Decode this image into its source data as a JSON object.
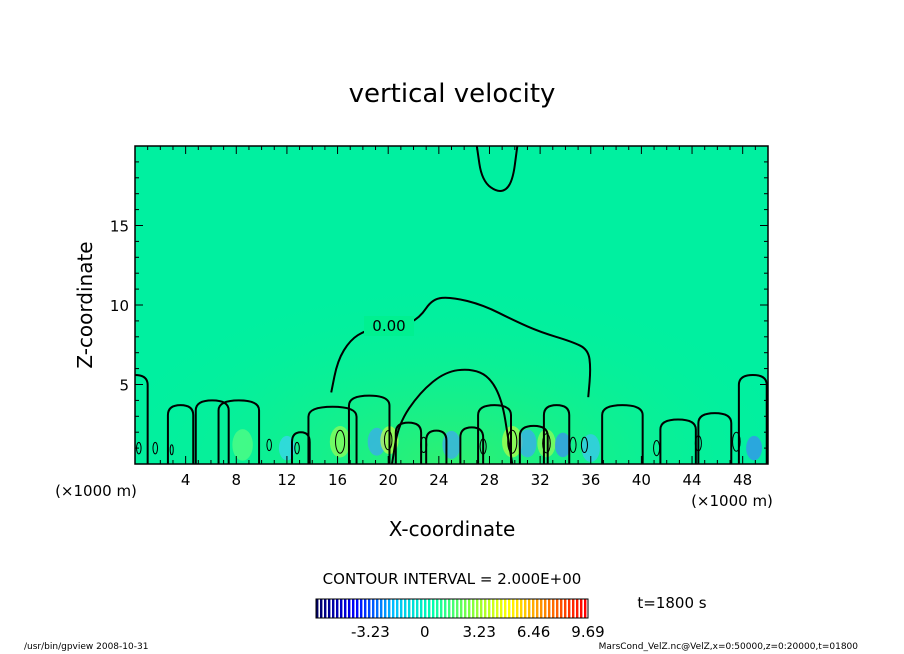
{
  "chart_data": {
    "type": "heatmap",
    "title": "vertical velocity",
    "xlabel": "X-coordinate",
    "ylabel": "Z-coordinate",
    "x_unit": "(×1000 m)",
    "xlim": [
      0,
      50
    ],
    "ylim": [
      0,
      20
    ],
    "x_ticks": [
      4,
      8,
      12,
      16,
      20,
      24,
      28,
      32,
      36,
      40,
      44,
      48
    ],
    "y_ticks": [
      5,
      10,
      15
    ],
    "contour_label": "0.00",
    "contour_interval_text": "CONTOUR INTERVAL = 2.000E+00",
    "colorbar": {
      "min": -6.46,
      "max": 9.69,
      "ticks": [
        "-3.23",
        "0",
        "3.23",
        "6.46",
        "9.69"
      ],
      "tick_values": [
        -3.23,
        0,
        3.23,
        6.46,
        9.69
      ],
      "colors": [
        "#000066",
        "#0000ff",
        "#00c0ff",
        "#00ffb0",
        "#80ff40",
        "#ffff00",
        "#ff8000",
        "#ff0000"
      ]
    },
    "time_label": "t=1800 s",
    "background_color": "#00f0a0",
    "upper_contour": [
      [
        27.0,
        20.0
      ],
      [
        27.4,
        17.8
      ],
      [
        28.8,
        17.0
      ],
      [
        29.8,
        17.6
      ],
      [
        30.2,
        20.0
      ]
    ],
    "zero_contour_upper": [
      [
        15.5,
        4.5
      ],
      [
        16.0,
        6.5
      ],
      [
        17.0,
        7.8
      ],
      [
        18.2,
        8.4
      ],
      [
        19.5,
        8.6
      ],
      [
        21.0,
        8.6
      ],
      [
        22.5,
        9.2
      ],
      [
        23.5,
        10.4
      ],
      [
        25.0,
        10.5
      ],
      [
        27.5,
        10.0
      ],
      [
        30.0,
        9.0
      ],
      [
        32.0,
        8.3
      ],
      [
        34.5,
        7.7
      ],
      [
        35.8,
        7.2
      ],
      [
        36.0,
        6.0
      ],
      [
        35.8,
        4.2
      ]
    ],
    "zero_contour_inner": [
      [
        20.3,
        0.0
      ],
      [
        20.8,
        2.5
      ],
      [
        22.5,
        4.5
      ],
      [
        24.5,
        5.8
      ],
      [
        26.5,
        6.0
      ],
      [
        28.0,
        5.5
      ],
      [
        29.0,
        4.0
      ],
      [
        29.5,
        1.5
      ],
      [
        29.8,
        0.0
      ]
    ],
    "low_level_bumps": [
      [
        0.0,
        1.0,
        5.6
      ],
      [
        3.6,
        1.0,
        3.7
      ],
      [
        6.1,
        1.3,
        4.0
      ],
      [
        8.2,
        1.6,
        4.0
      ],
      [
        13.1,
        0.7,
        2.0
      ],
      [
        15.6,
        1.9,
        3.6
      ],
      [
        18.5,
        1.6,
        4.3
      ],
      [
        21.6,
        1.0,
        2.6
      ],
      [
        23.8,
        0.8,
        2.1
      ],
      [
        26.6,
        0.9,
        2.3
      ],
      [
        28.4,
        1.3,
        3.7
      ],
      [
        31.5,
        1.1,
        2.4
      ],
      [
        33.3,
        1.0,
        3.7
      ],
      [
        38.5,
        1.6,
        3.7
      ],
      [
        42.9,
        1.4,
        2.8
      ],
      [
        45.8,
        1.3,
        3.2
      ],
      [
        48.8,
        1.1,
        5.6
      ]
    ],
    "small_contours": [
      [
        0.3,
        1.0,
        0.3
      ],
      [
        1.6,
        1.0,
        0.3
      ],
      [
        2.9,
        0.9,
        0.2
      ],
      [
        10.6,
        1.2,
        0.3
      ],
      [
        12.8,
        1.0,
        0.3
      ],
      [
        16.2,
        1.4,
        0.6
      ],
      [
        20.0,
        1.5,
        0.5
      ],
      [
        22.8,
        1.2,
        0.4
      ],
      [
        27.5,
        1.1,
        0.4
      ],
      [
        29.8,
        1.4,
        0.6
      ],
      [
        32.5,
        1.3,
        0.5
      ],
      [
        34.6,
        1.2,
        0.4
      ],
      [
        35.5,
        1.2,
        0.4
      ],
      [
        41.2,
        1.0,
        0.4
      ],
      [
        44.5,
        1.3,
        0.4
      ],
      [
        47.5,
        1.4,
        0.5
      ]
    ],
    "hotspots": [
      [
        16.2,
        1.4,
        0.9,
        "#a0ff50"
      ],
      [
        19.1,
        1.4,
        0.8,
        "#40a0ff"
      ],
      [
        20.1,
        1.5,
        0.8,
        "#d0ff40"
      ],
      [
        25.0,
        1.2,
        0.8,
        "#40a0ff"
      ],
      [
        29.8,
        1.4,
        0.9,
        "#c0ff40"
      ],
      [
        31.0,
        1.3,
        0.8,
        "#40a0ff"
      ],
      [
        32.5,
        1.3,
        0.8,
        "#a0ff50"
      ],
      [
        33.8,
        1.2,
        0.7,
        "#4080ff"
      ],
      [
        48.9,
        1.0,
        0.7,
        "#4080ff"
      ],
      [
        8.5,
        1.2,
        0.9,
        "#60ff80"
      ],
      [
        36.0,
        1.0,
        0.8,
        "#40c0ff"
      ],
      [
        12.0,
        1.0,
        0.7,
        "#40d0ff"
      ]
    ]
  },
  "footer": {
    "left": "/usr/bin/gpview   2008-10-31",
    "right": "MarsCond_VelZ.nc@VelZ,x=0:50000,z=0:20000,t=01800"
  }
}
